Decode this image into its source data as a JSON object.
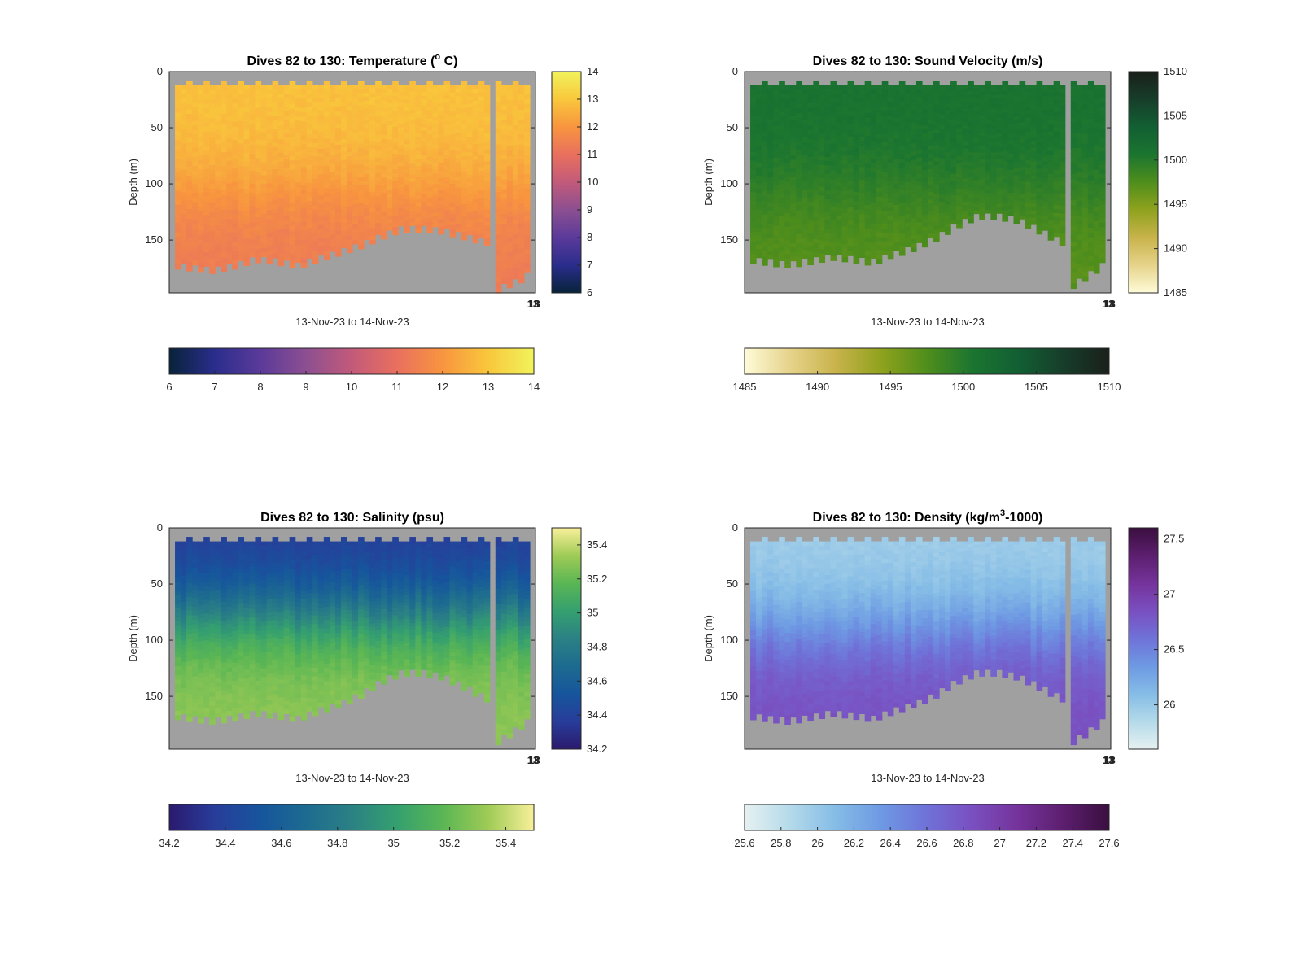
{
  "chart_data": [
    {
      "type": "heatmap",
      "title": "Dives 82 to 130: Temperature (",
      "title_sup": "o",
      "title_tail": " C)",
      "ylabel": "Depth (m)",
      "xlabel": "13-Nov-23 to 14-Nov-23",
      "x_corner_ticks": [
        "13",
        "18"
      ],
      "y_ticks": [
        "0",
        "50",
        "100",
        "150"
      ],
      "y_range": [
        0,
        197
      ],
      "colormap": "thermal",
      "colormap_stops": [
        "#08233a",
        "#2a2d8c",
        "#5b3a9a",
        "#8c4f91",
        "#c25a7a",
        "#e9705e",
        "#f8953f",
        "#f9c73c",
        "#f1f35c"
      ],
      "clim": [
        6,
        14
      ],
      "side_colorbar_ticks": [
        "6",
        "7",
        "8",
        "9",
        "10",
        "11",
        "12",
        "13",
        "14"
      ],
      "bottom_colorbar_ticks": [
        "6",
        "7",
        "8",
        "9",
        "10",
        "11",
        "12",
        "13",
        "14"
      ],
      "surface_value": 12.9,
      "deep_value": 11.3,
      "mid_depth": 105,
      "bottom_depth_profile": [
        175,
        178,
        180,
        176,
        170,
        172,
        176,
        170,
        164,
        158,
        150,
        143,
        143,
        145,
        150,
        155
      ],
      "gap_fraction": 0.87,
      "after_gap_bottom": [
        197,
        193,
        190,
        185
      ],
      "fill_color": "#a0a0a0"
    },
    {
      "type": "heatmap",
      "title": "Dives 82 to 130: Sound Velocity (m/s)",
      "title_sup": "",
      "title_tail": "",
      "ylabel": "Depth (m)",
      "xlabel": "13-Nov-23 to 14-Nov-23",
      "x_corner_ticks": [
        "13",
        "18"
      ],
      "y_ticks": [
        "0",
        "50",
        "100",
        "150"
      ],
      "y_range": [
        0,
        197
      ],
      "colormap": "speed",
      "colormap_stops": [
        "#fefbd8",
        "#e6d38a",
        "#c8b34b",
        "#8fa21d",
        "#4f8e1c",
        "#1b7530",
        "#125f33",
        "#173d2a",
        "#1a201a"
      ],
      "clim": [
        1485,
        1510
      ],
      "side_colorbar_ticks": [
        "1485",
        "1490",
        "1495",
        "1500",
        "1505",
        "1510"
      ],
      "bottom_colorbar_ticks": [
        "1485",
        "1490",
        "1495",
        "1500",
        "1505",
        "1510"
      ],
      "surface_value": 1501.0,
      "deep_value": 1497.0,
      "mid_depth": 110,
      "bottom_depth_profile": [
        170,
        173,
        175,
        172,
        168,
        170,
        173,
        166,
        160,
        152,
        140,
        132,
        132,
        136,
        145,
        155
      ],
      "gap_fraction": 0.87,
      "after_gap_bottom": [
        193,
        188,
        182,
        176
      ],
      "fill_color": "#a0a0a0"
    },
    {
      "type": "heatmap",
      "title": "Dives 82 to 130: Salinity (psu)",
      "title_sup": "",
      "title_tail": "",
      "ylabel": "Depth (m)",
      "xlabel": "13-Nov-23 to 14-Nov-23",
      "x_corner_ticks": [
        "13",
        "18"
      ],
      "y_ticks": [
        "0",
        "50",
        "100",
        "150"
      ],
      "y_range": [
        0,
        197
      ],
      "colormap": "haline",
      "colormap_stops": [
        "#2a1a6e",
        "#283d9a",
        "#16559c",
        "#1d6b90",
        "#2b8184",
        "#35a06f",
        "#5ab654",
        "#9fcb56",
        "#f9f09a"
      ],
      "clim": [
        34.2,
        35.5
      ],
      "side_colorbar_ticks": [
        "34.2",
        "34.4",
        "34.6",
        "34.8",
        "35",
        "35.2",
        "35.4"
      ],
      "bottom_colorbar_ticks": [
        "34.2",
        "34.4",
        "34.6",
        "34.8",
        "35",
        "35.2",
        "35.4"
      ],
      "surface_value": 34.35,
      "deep_value": 35.3,
      "mid_depth": 75,
      "bottom_depth_profile": [
        170,
        173,
        175,
        172,
        168,
        170,
        173,
        166,
        160,
        152,
        140,
        132,
        132,
        136,
        145,
        155
      ],
      "gap_fraction": 0.87,
      "after_gap_bottom": [
        193,
        188,
        182,
        176
      ],
      "fill_color": "#a0a0a0"
    },
    {
      "type": "heatmap",
      "title": "Dives 82 to 130: Density (kg/m",
      "title_sup": "3",
      "title_tail": "-1000)",
      "ylabel": "Depth (m)",
      "xlabel": "13-Nov-23 to 14-Nov-23",
      "x_corner_ticks": [
        "13",
        "18"
      ],
      "y_ticks": [
        "0",
        "50",
        "100",
        "150"
      ],
      "y_range": [
        0,
        197
      ],
      "colormap": "dense",
      "colormap_stops": [
        "#e6f1f1",
        "#b4daea",
        "#85bce6",
        "#6e99e3",
        "#6f72d8",
        "#7a4fc0",
        "#75339b",
        "#5c1e6e",
        "#3a0f3f"
      ],
      "clim": [
        25.6,
        27.6
      ],
      "side_colorbar_ticks": [
        "26",
        "26.5",
        "27",
        "27.5"
      ],
      "bottom_colorbar_ticks": [
        "25.6",
        "25.8",
        "26",
        "26.2",
        "26.4",
        "26.6",
        "26.8",
        "27",
        "27.2",
        "27.4",
        "27.6"
      ],
      "surface_value": 25.95,
      "deep_value": 26.85,
      "mid_depth": 90,
      "bottom_depth_profile": [
        170,
        173,
        175,
        172,
        168,
        170,
        173,
        166,
        160,
        152,
        140,
        132,
        132,
        136,
        145,
        155
      ],
      "gap_fraction": 0.87,
      "after_gap_bottom": [
        193,
        188,
        182,
        176
      ],
      "fill_color": "#a0a0a0"
    }
  ]
}
